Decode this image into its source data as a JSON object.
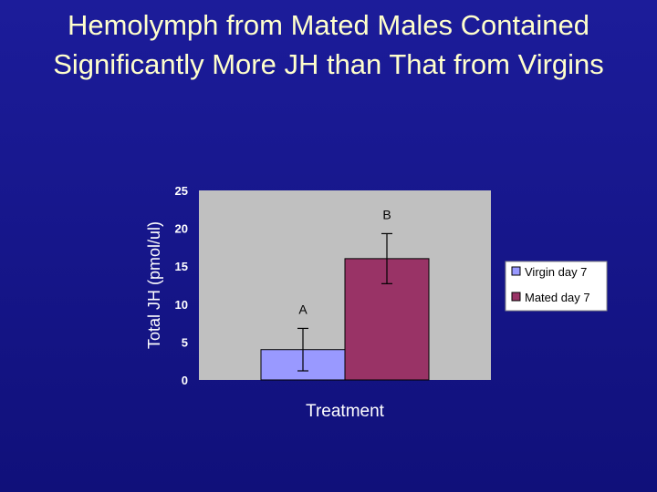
{
  "chart_data": {
    "type": "bar",
    "title": "Hemolymph from Mated Males Contained Significantly More JH than That from Virgins",
    "x_label": "Treatment",
    "y_label": "Total JH (pmol/ul)",
    "categories": [
      null
    ],
    "series": [
      {
        "name": "Virgin day 7",
        "color": "#9999ff",
        "values": [
          4
        ],
        "errors": [
          2.8
        ]
      },
      {
        "name": "Mated day 7",
        "color": "#993366",
        "values": [
          16
        ],
        "errors": [
          3.3
        ]
      }
    ],
    "annotations": [
      "A",
      "B"
    ],
    "ylim": [
      0,
      25
    ],
    "yticks": [
      0,
      5,
      10,
      15,
      20,
      25
    ],
    "grid": false,
    "legend": "right"
  }
}
